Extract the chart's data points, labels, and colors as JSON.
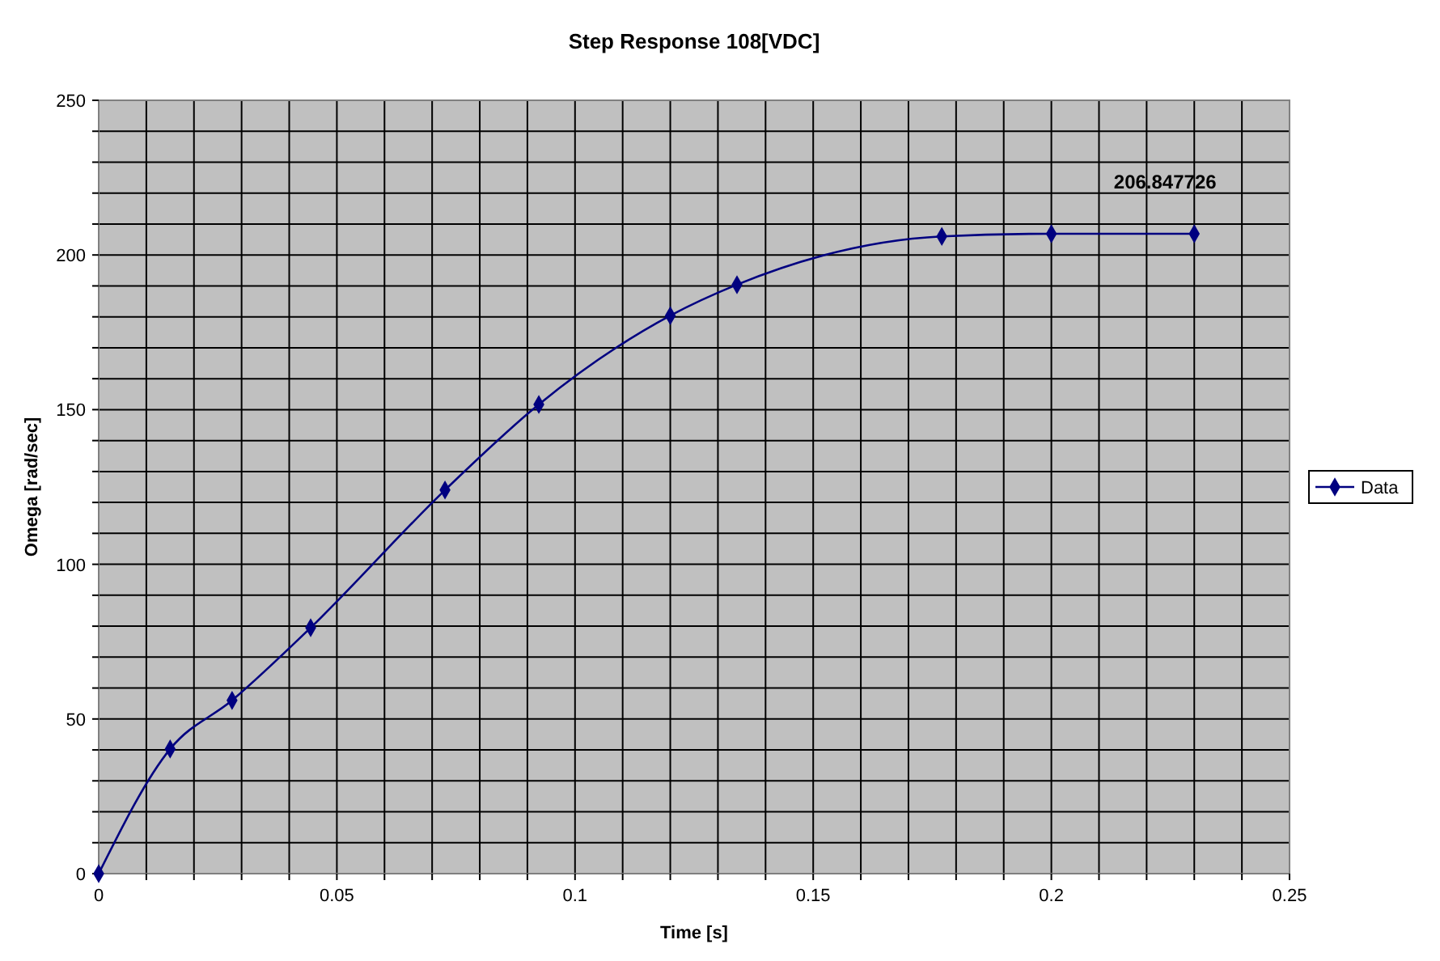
{
  "chart_data": {
    "type": "line",
    "title": "Step Response 108[VDC]",
    "xlabel": "Time [s]",
    "ylabel": "Omega [rad/sec]",
    "x": [
      0,
      0.015,
      0.028,
      0.0445,
      0.0727,
      0.0924,
      0.12,
      0.134,
      0.177,
      0.2,
      0.23
    ],
    "series": [
      {
        "name": "Data",
        "color": "#000080",
        "values": [
          0,
          40.3,
          56,
          79.5,
          124,
          151.7,
          180.4,
          190.4,
          206,
          206.847726,
          206.847726
        ],
        "value_labels": [
          null,
          null,
          null,
          null,
          null,
          null,
          null,
          null,
          null,
          null,
          "206.847726"
        ]
      }
    ],
    "xlim": [
      0,
      0.25
    ],
    "xticks": [
      0,
      {
        "value": 0.01,
        "label": null
      },
      {
        "value": 0.02,
        "label": null
      },
      {
        "value": 0.03,
        "label": null
      },
      {
        "value": 0.04,
        "label": null
      },
      0.05,
      {
        "value": 0.06,
        "label": null
      },
      {
        "value": 0.07,
        "label": null
      },
      {
        "value": 0.08,
        "label": null
      },
      {
        "value": 0.09,
        "label": null
      },
      0.1,
      {
        "value": 0.11,
        "label": null
      },
      {
        "value": 0.12,
        "label": null
      },
      {
        "value": 0.13,
        "label": null
      },
      {
        "value": 0.14,
        "label": null
      },
      0.15,
      {
        "value": 0.16,
        "label": null
      },
      {
        "value": 0.17,
        "label": null
      },
      {
        "value": 0.18,
        "label": null
      },
      {
        "value": 0.19,
        "label": null
      },
      0.2,
      {
        "value": 0.21,
        "label": null
      },
      {
        "value": 0.22,
        "label": null
      },
      {
        "value": 0.23,
        "label": null
      },
      {
        "value": 0.24,
        "label": null
      },
      0.25
    ],
    "ylim": [
      0,
      250
    ],
    "yticks": [
      0,
      {
        "value": 10,
        "label": null
      },
      {
        "value": 20,
        "label": null
      },
      {
        "value": 30,
        "label": null
      },
      {
        "value": 40,
        "label": null
      },
      50,
      {
        "value": 60,
        "label": null
      },
      {
        "value": 70,
        "label": null
      },
      {
        "value": 80,
        "label": null
      },
      {
        "value": 90,
        "label": null
      },
      100,
      {
        "value": 110,
        "label": null
      },
      {
        "value": 120,
        "label": null
      },
      {
        "value": 130,
        "label": null
      },
      {
        "value": 140,
        "label": null
      },
      150,
      {
        "value": 160,
        "label": null
      },
      {
        "value": 170,
        "label": null
      },
      {
        "value": 180,
        "label": null
      },
      {
        "value": 190,
        "label": null
      },
      200,
      {
        "value": 210,
        "label": null
      },
      {
        "value": 220,
        "label": null
      },
      {
        "value": 230,
        "label": null
      },
      {
        "value": 240,
        "label": null
      },
      250
    ],
    "grid": true,
    "legend": "right",
    "marker": "diamond",
    "line_style": "solid"
  }
}
